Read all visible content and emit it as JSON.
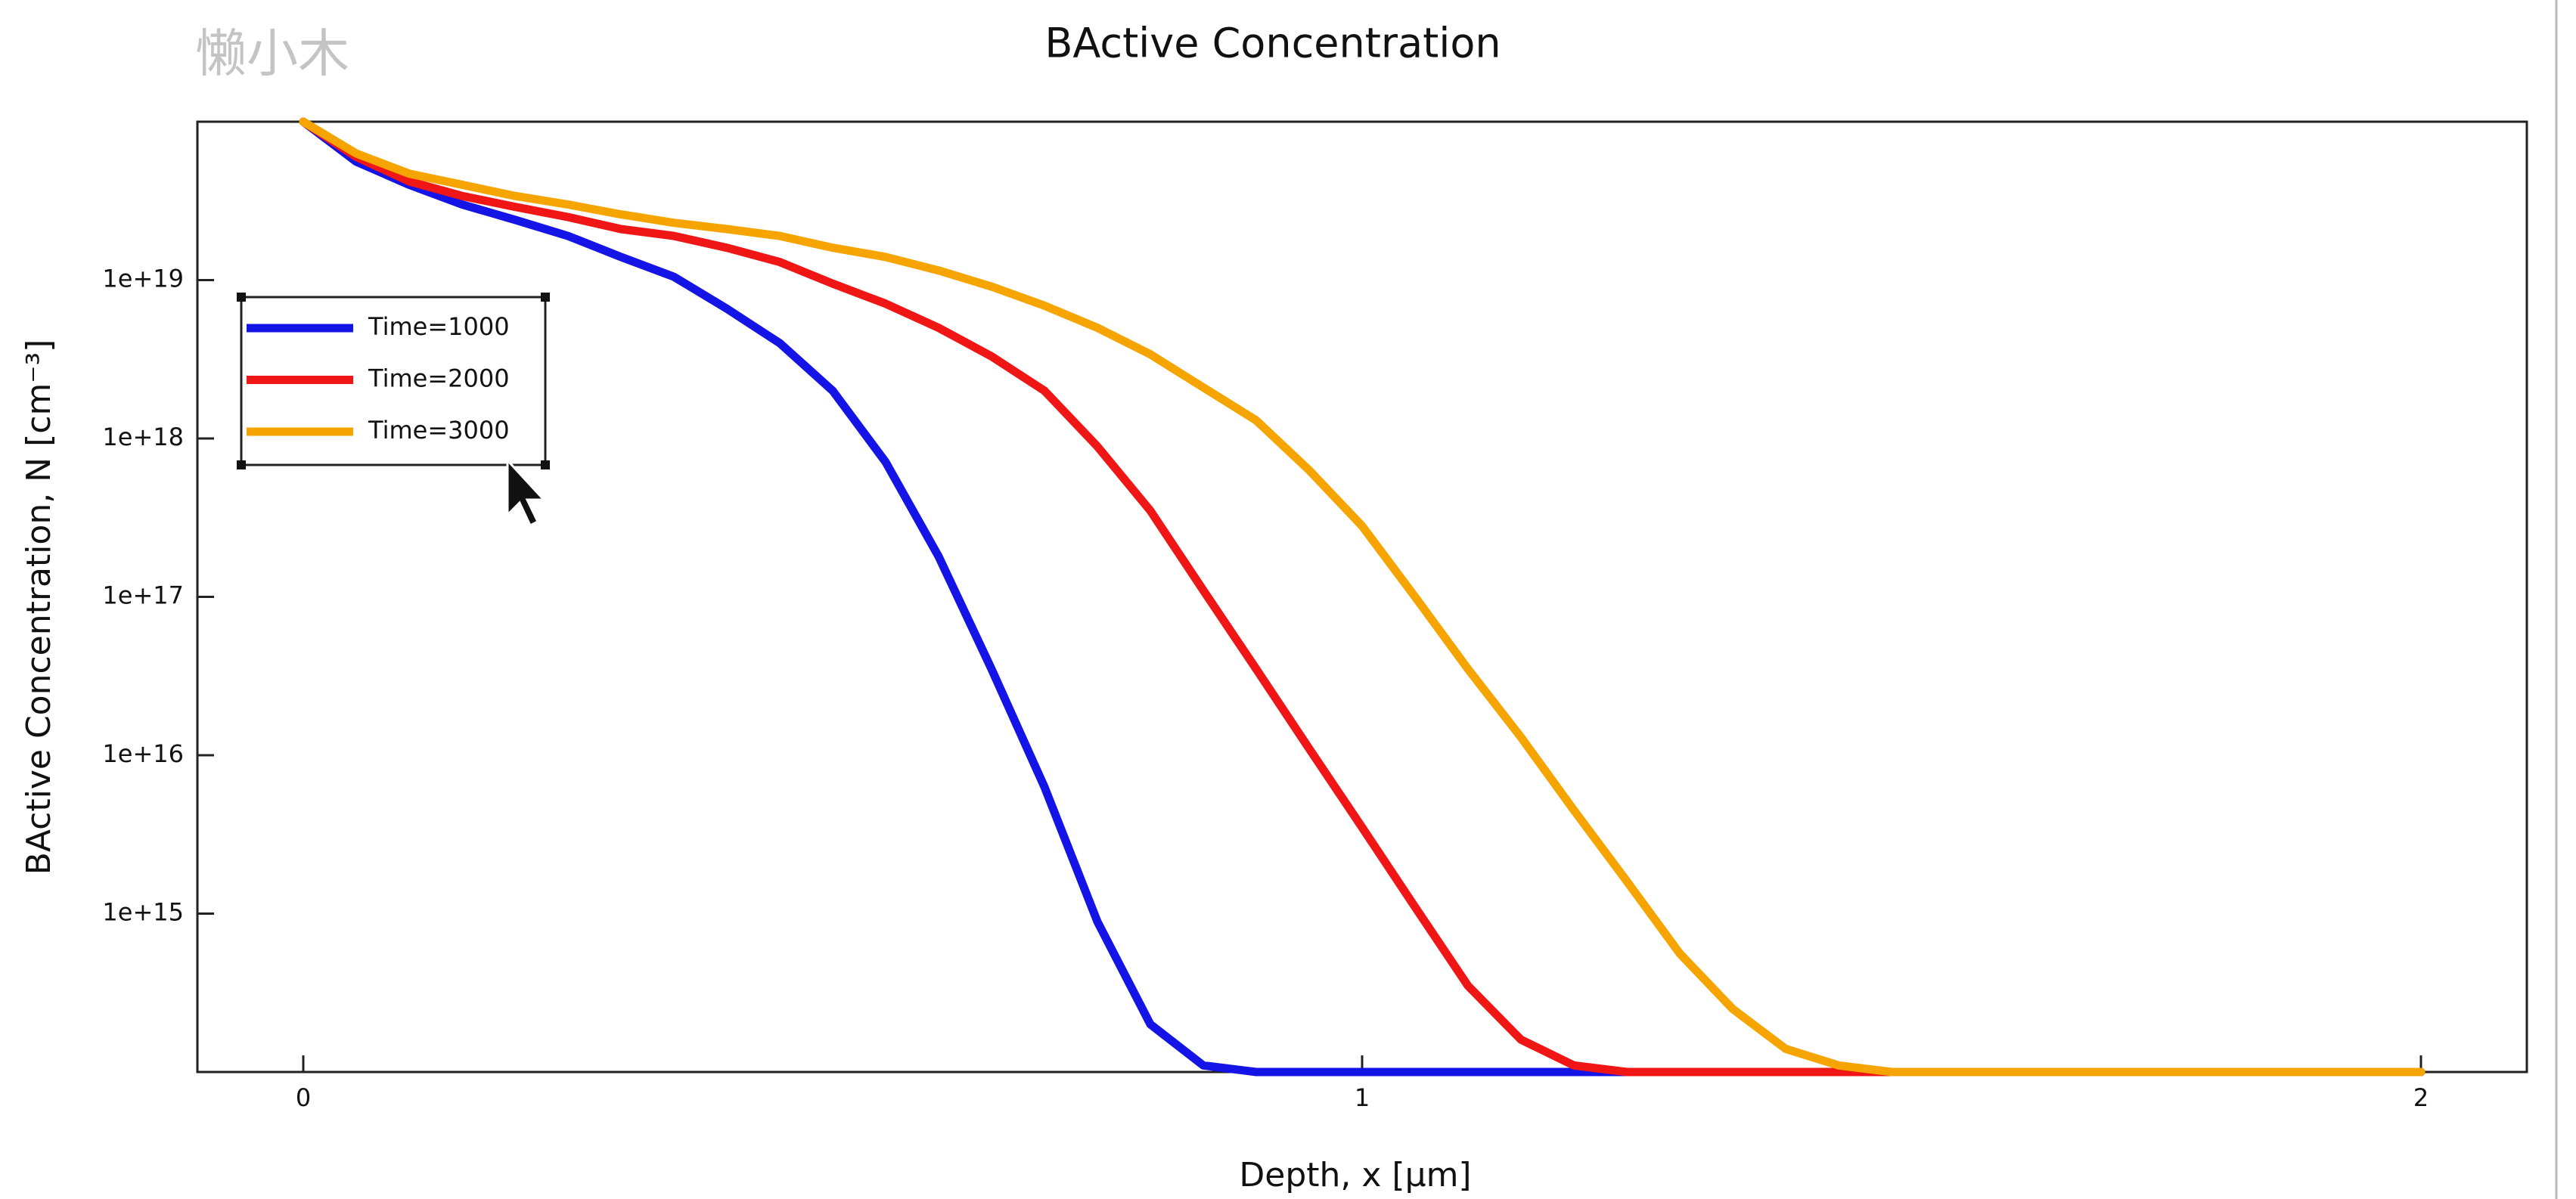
{
  "chart_data": {
    "type": "line",
    "title": "BActive Concentration",
    "watermark": "懒小木",
    "x_label": "Depth, x [µm]",
    "y_label": "BActive Concentration, N [cm⁻³]",
    "yscale": "log",
    "legend": "upper left",
    "x": [
      0,
      0.05,
      0.1,
      0.15,
      0.2,
      0.25,
      0.3,
      0.35,
      0.4,
      0.45,
      0.5,
      0.55,
      0.6,
      0.65,
      0.7,
      0.75,
      0.8,
      0.85,
      0.9,
      0.95,
      1.0,
      1.05,
      1.1,
      1.15,
      1.2,
      1.25,
      1.3,
      1.35,
      1.4,
      1.45,
      1.5,
      1.55,
      1.6,
      1.8,
      2.0
    ],
    "series": [
      {
        "name": "Time=1000",
        "color": "#1414e6",
        "values": [
          1e+20,
          5.6e+19,
          4e+19,
          3e+19,
          2.4e+19,
          1.9e+19,
          1.4e+19,
          1.05e+19,
          6.6e+18,
          4e+18,
          2e+18,
          7.1e+17,
          1.8e+17,
          3.5e+16,
          6300000000000000.0,
          890000000000000.0,
          200000000000000.0,
          110000000000000.0,
          100000000000000.0,
          100000000000000.0,
          100000000000000.0,
          100000000000000.0,
          100000000000000.0,
          100000000000000.0,
          100000000000000.0,
          100000000000000.0,
          100000000000000.0,
          100000000000000.0,
          100000000000000.0,
          100000000000000.0,
          100000000000000.0,
          100000000000000.0,
          100000000000000.0,
          100000000000000.0,
          100000000000000.0
        ]
      },
      {
        "name": "Time=2000",
        "color": "#f01616",
        "values": [
          1e+20,
          6e+19,
          4.2e+19,
          3.4e+19,
          2.9e+19,
          2.5e+19,
          2.1e+19,
          1.9e+19,
          1.6e+19,
          1.3e+19,
          9.5e+18,
          7.1e+18,
          5e+18,
          3.3e+18,
          2e+18,
          8.9e+17,
          3.5e+17,
          1.1e+17,
          3.5e+16,
          1.1e+16,
          3500000000000000.0,
          1100000000000000.0,
          350000000000000.0,
          160000000000000.0,
          110000000000000.0,
          100000000000000.0,
          100000000000000.0,
          100000000000000.0,
          100000000000000.0,
          100000000000000.0,
          100000000000000.0,
          100000000000000.0,
          100000000000000.0,
          100000000000000.0,
          100000000000000.0
        ]
      },
      {
        "name": "Time=3000",
        "color": "#f6a500",
        "values": [
          1e+20,
          6.3e+19,
          4.7e+19,
          4e+19,
          3.4e+19,
          3e+19,
          2.6e+19,
          2.3e+19,
          2.1e+19,
          1.9e+19,
          1.6e+19,
          1.4e+19,
          1.15e+19,
          9.1e+18,
          6.9e+18,
          5e+18,
          3.4e+18,
          2.1e+18,
          1.3e+18,
          6.3e+17,
          2.8e+17,
          1e+17,
          3.5e+16,
          1.3e+16,
          4500000000000000.0,
          1600000000000000.0,
          560000000000000.0,
          250000000000000.0,
          140000000000000.0,
          110000000000000.0,
          100000000000000.0,
          100000000000000.0,
          100000000000000.0,
          100000000000000.0,
          100000000000000.0
        ]
      }
    ],
    "xlim": [
      -0.1,
      2.1
    ],
    "xticks": [
      0,
      1,
      2
    ],
    "ylim": [
      100000000000000.0,
      1e+20
    ],
    "yticks": [
      {
        "value": 1000000000000000.0,
        "label": "1e+15"
      },
      {
        "value": 1e+16,
        "label": "1e+16"
      },
      {
        "value": 1e+17,
        "label": "1e+17"
      },
      {
        "value": 1e+18,
        "label": "1e+18"
      },
      {
        "value": 1e+19,
        "label": "1e+19"
      }
    ]
  }
}
